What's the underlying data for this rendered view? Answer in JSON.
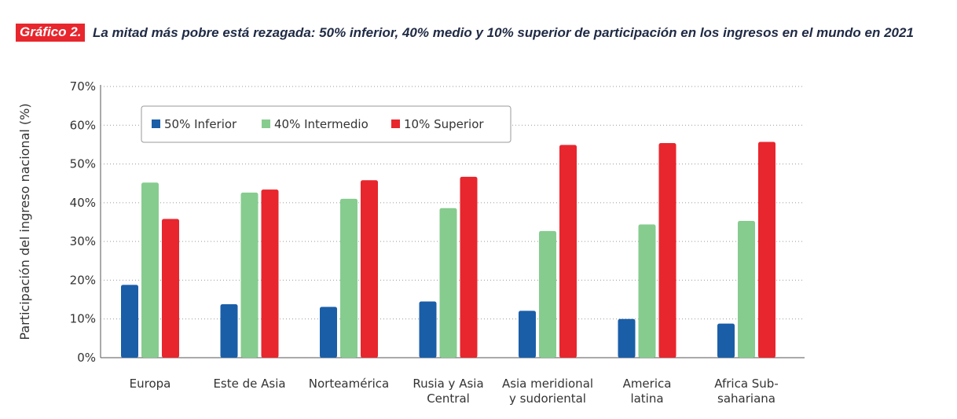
{
  "header": {
    "badge": "Gráfico 2.",
    "title": "La mitad más pobre está rezagada: 50% inferior, 40% medio y 10% superior de participación en los ingresos en el mundo en 2021"
  },
  "chart_data": {
    "type": "bar",
    "ylabel": "Participación del ingreso nacional (%)",
    "xlabel": "",
    "ylim": [
      0,
      70
    ],
    "yticks": [
      0,
      10,
      20,
      30,
      40,
      50,
      60,
      70
    ],
    "ytick_labels": [
      "0%",
      "10%",
      "20%",
      "30%",
      "40%",
      "50%",
      "60%",
      "70%"
    ],
    "grid": "horizontal-dotted",
    "legend_position": "top-left",
    "categories": [
      [
        "Europa"
      ],
      [
        "Este de Asia"
      ],
      [
        "Norteamérica"
      ],
      [
        "Rusia y Asia",
        "Central"
      ],
      [
        "Asia meridional",
        "y sudoriental"
      ],
      [
        "America",
        "latina"
      ],
      [
        "Africa Sub-",
        "sahariana"
      ]
    ],
    "series": [
      {
        "name": "50% Inferior",
        "color": "#1a5ea8",
        "values": [
          18.8,
          13.8,
          13.1,
          14.5,
          12.1,
          10.0,
          8.8
        ]
      },
      {
        "name": "40% Intermedio",
        "color": "#86cc8f",
        "values": [
          45.2,
          42.6,
          41.0,
          38.6,
          32.7,
          34.4,
          35.3
        ]
      },
      {
        "name": "10% Superior",
        "color": "#e8262d",
        "values": [
          35.8,
          43.4,
          45.8,
          46.7,
          54.9,
          55.4,
          55.7
        ]
      }
    ]
  }
}
